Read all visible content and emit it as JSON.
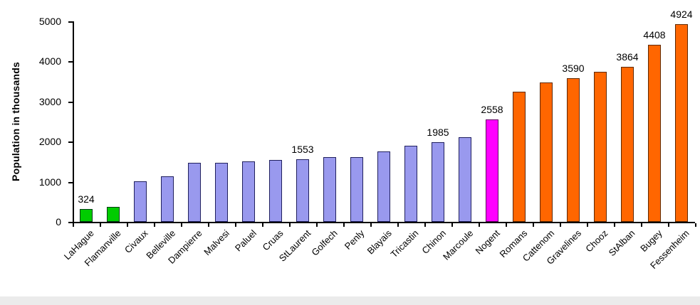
{
  "chart_data": {
    "type": "bar",
    "title": "",
    "ylabel": "Population in thousands",
    "xlabel": "",
    "ylim": [
      0,
      5000
    ],
    "yticks": [
      0,
      1000,
      2000,
      3000,
      4000,
      5000
    ],
    "grid": false,
    "legend_position": "none",
    "categories": [
      "LaHague",
      "Flamanville",
      "Civaux",
      "Belleville",
      "Dampierre",
      "Malvesi",
      "Paluel",
      "Cruas",
      "StLaurent",
      "Golfech",
      "Penly",
      "Blayais",
      "Tricastin",
      "Chinon",
      "Marcoule",
      "Nogent",
      "Romans",
      "Cattenom",
      "Gravelines",
      "Chooz",
      "StAlban",
      "Bugey",
      "Fessenheim"
    ],
    "values": [
      324,
      365,
      1015,
      1140,
      1475,
      1475,
      1510,
      1545,
      1553,
      1620,
      1620,
      1760,
      1900,
      1985,
      2110,
      2558,
      3250,
      3480,
      3590,
      3745,
      3864,
      4408,
      4924
    ],
    "palette": {
      "green": {
        "fill": "#00CC00",
        "border": "#003C14"
      },
      "periwinkle": {
        "fill": "#9999EE",
        "border": "#20205E"
      },
      "magenta": {
        "fill": "#FF00FF",
        "border": "#5E005E"
      },
      "orange": {
        "fill": "#FF6600",
        "border": "#5E2800"
      }
    },
    "bars": [
      {
        "category": "LaHague",
        "value": 324,
        "color": "green",
        "data_label": "324"
      },
      {
        "category": "Flamanville",
        "value": 365,
        "color": "green",
        "data_label": null
      },
      {
        "category": "Civaux",
        "value": 1015,
        "color": "periwinkle",
        "data_label": null
      },
      {
        "category": "Belleville",
        "value": 1140,
        "color": "periwinkle",
        "data_label": null
      },
      {
        "category": "Dampierre",
        "value": 1475,
        "color": "periwinkle",
        "data_label": null
      },
      {
        "category": "Malvesi",
        "value": 1475,
        "color": "periwinkle",
        "data_label": null
      },
      {
        "category": "Paluel",
        "value": 1510,
        "color": "periwinkle",
        "data_label": null
      },
      {
        "category": "Cruas",
        "value": 1545,
        "color": "periwinkle",
        "data_label": null
      },
      {
        "category": "StLaurent",
        "value": 1553,
        "color": "periwinkle",
        "data_label": "1553"
      },
      {
        "category": "Golfech",
        "value": 1620,
        "color": "periwinkle",
        "data_label": null
      },
      {
        "category": "Penly",
        "value": 1620,
        "color": "periwinkle",
        "data_label": null
      },
      {
        "category": "Blayais",
        "value": 1760,
        "color": "periwinkle",
        "data_label": null
      },
      {
        "category": "Tricastin",
        "value": 1900,
        "color": "periwinkle",
        "data_label": null
      },
      {
        "category": "Chinon",
        "value": 1985,
        "color": "periwinkle",
        "data_label": "1985"
      },
      {
        "category": "Marcoule",
        "value": 2110,
        "color": "periwinkle",
        "data_label": null
      },
      {
        "category": "Nogent",
        "value": 2558,
        "color": "magenta",
        "data_label": "2558"
      },
      {
        "category": "Romans",
        "value": 3250,
        "color": "orange",
        "data_label": null
      },
      {
        "category": "Cattenom",
        "value": 3480,
        "color": "orange",
        "data_label": null
      },
      {
        "category": "Gravelines",
        "value": 3590,
        "color": "orange",
        "data_label": "3590"
      },
      {
        "category": "Chooz",
        "value": 3745,
        "color": "orange",
        "data_label": null
      },
      {
        "category": "StAlban",
        "value": 3864,
        "color": "orange",
        "data_label": "3864"
      },
      {
        "category": "Bugey",
        "value": 4408,
        "color": "orange",
        "data_label": "4408"
      },
      {
        "category": "Fessenheim",
        "value": 4924,
        "color": "orange",
        "data_label": "4924"
      }
    ]
  },
  "page": {
    "background": "#FFFFFF",
    "axis_color": "#000000",
    "bottom_band_color": "#EBEBEB"
  }
}
